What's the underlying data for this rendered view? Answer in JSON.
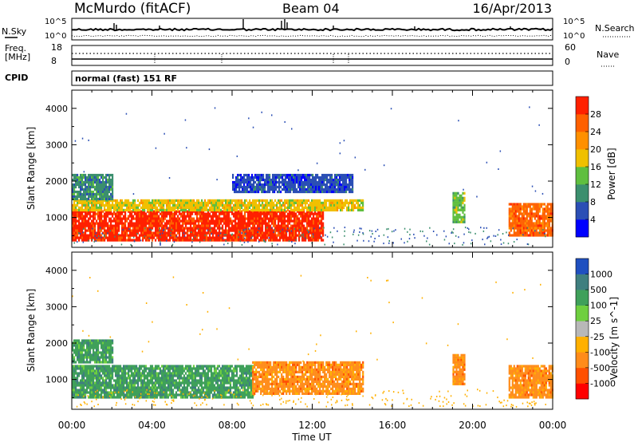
{
  "header": {
    "station": "McMurdo (fitACF)",
    "beam": "Beam 04",
    "date": "16/Apr/2013"
  },
  "noise_panel": {
    "left_label": "N.Sky",
    "right_label": "N.Search",
    "left_ticks": [
      "10^5",
      "10^0"
    ],
    "right_ticks": [
      "10^5",
      "10^0"
    ]
  },
  "freq_panel": {
    "left_label_1": "Freq.",
    "left_label_2": "[MHz]",
    "left_ticks": [
      "18",
      "8"
    ],
    "right_label": "Nave",
    "right_ticks": [
      "60",
      "0"
    ]
  },
  "cpid_panel": {
    "label": "CPID",
    "mode_text": "normal (fast) 151 RF"
  },
  "chart_data": [
    {
      "type": "heatmap",
      "title": "",
      "xlabel": "Time UT",
      "ylabel": "Slant Range [km]",
      "xlim": [
        "00:00",
        "24:00"
      ],
      "ylim": [
        180,
        4500
      ],
      "x_ticks": [
        "00:00",
        "04:00",
        "08:00",
        "12:00",
        "16:00",
        "20:00",
        "00:00"
      ],
      "y_ticks": [
        "1000",
        "2000",
        "3000",
        "4000"
      ],
      "colorbar": {
        "label": "Power [dB]",
        "ticks": [
          "4",
          "8",
          "12",
          "16",
          "20",
          "24",
          "28"
        ],
        "colors": [
          "#0000ff",
          "#2b4fb5",
          "#3b8f6e",
          "#5fbf3f",
          "#f0c000",
          "#ff9000",
          "#ff6000",
          "#ff2000"
        ]
      },
      "regions": [
        {
          "x_start_h": 0.0,
          "x_end_h": 12.5,
          "range_low_km": 350,
          "range_high_km": 1200,
          "level_db": 28
        },
        {
          "x_start_h": 0.0,
          "x_end_h": 14.5,
          "range_low_km": 1200,
          "range_high_km": 1500,
          "level_db": 18
        },
        {
          "x_start_h": 0.0,
          "x_end_h": 2.0,
          "range_low_km": 1500,
          "range_high_km": 2200,
          "level_db": 10
        },
        {
          "x_start_h": 8.0,
          "x_end_h": 14.0,
          "range_low_km": 1700,
          "range_high_km": 2200,
          "level_db": 6
        },
        {
          "x_start_h": 19.0,
          "x_end_h": 19.6,
          "range_low_km": 900,
          "range_high_km": 1700,
          "level_db": 14
        },
        {
          "x_start_h": 21.8,
          "x_end_h": 24.0,
          "range_low_km": 500,
          "range_high_km": 1400,
          "level_db": 26
        }
      ]
    },
    {
      "type": "heatmap",
      "title": "",
      "xlabel": "Time UT",
      "ylabel": "Slant Range [km]",
      "xlim": [
        "00:00",
        "24:00"
      ],
      "ylim": [
        180,
        4500
      ],
      "x_ticks": [
        "00:00",
        "04:00",
        "08:00",
        "12:00",
        "16:00",
        "20:00",
        "00:00"
      ],
      "y_ticks": [
        "1000",
        "2000",
        "3000",
        "4000"
      ],
      "colorbar": {
        "label": "Velocity [m s^-1]",
        "ticks": [
          "1000",
          "500",
          "100",
          "25",
          "-25",
          "-100",
          "-500",
          "-1000"
        ],
        "colors": [
          "#1f50c0",
          "#3f7f7f",
          "#3fa05a",
          "#6fcf3f",
          "#b8b8b8",
          "#ffb000",
          "#ff8c1a",
          "#ff5000",
          "#ff0000"
        ]
      },
      "regions": [
        {
          "x_start_h": 0.0,
          "x_end_h": 3.5,
          "range_low_km": 500,
          "range_high_km": 1400,
          "velocity_ms": 100
        },
        {
          "x_start_h": 3.5,
          "x_end_h": 9.0,
          "range_low_km": 500,
          "range_high_km": 1400,
          "velocity_ms": 300
        },
        {
          "x_start_h": 9.0,
          "x_end_h": 14.5,
          "range_low_km": 600,
          "range_high_km": 1500,
          "velocity_ms": -150
        },
        {
          "x_start_h": 0.0,
          "x_end_h": 2.0,
          "range_low_km": 1500,
          "range_high_km": 2100,
          "velocity_ms": 100
        },
        {
          "x_start_h": 19.0,
          "x_end_h": 19.6,
          "range_low_km": 900,
          "range_high_km": 1700,
          "velocity_ms": -200
        },
        {
          "x_start_h": 21.8,
          "x_end_h": 24.0,
          "range_low_km": 500,
          "range_high_km": 1400,
          "velocity_ms": -200
        }
      ]
    }
  ]
}
